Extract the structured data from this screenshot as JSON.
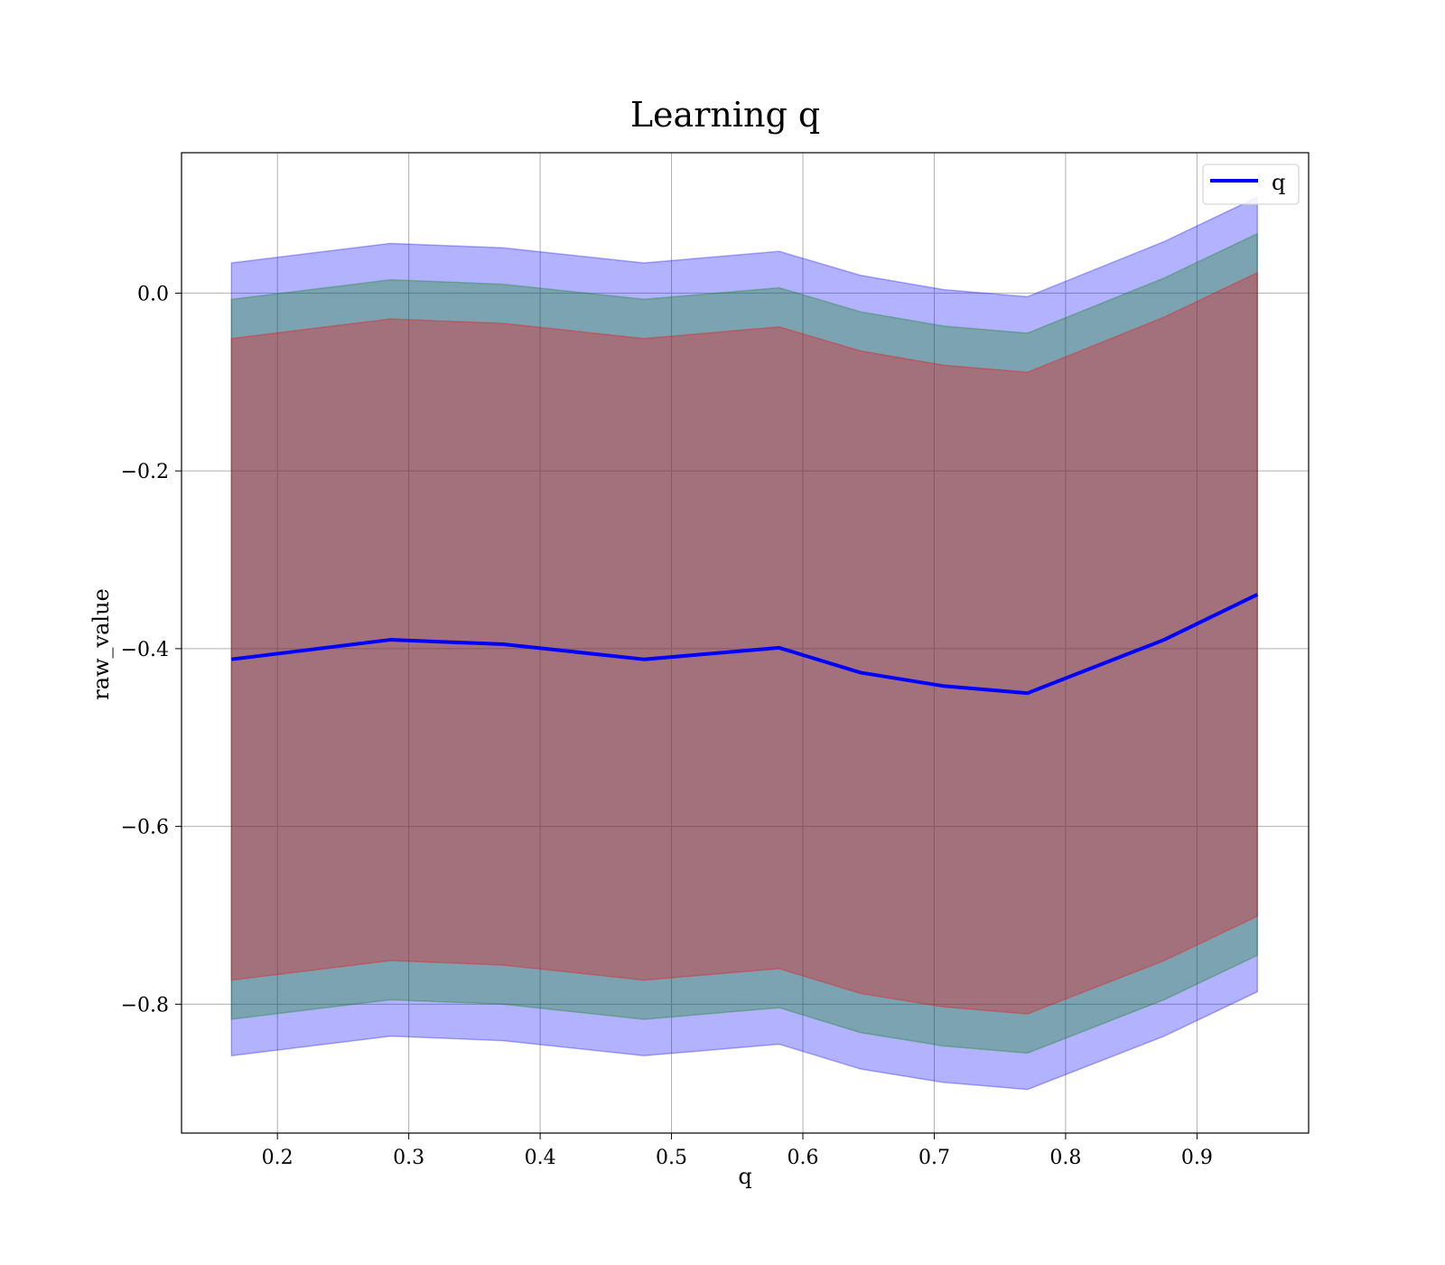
{
  "chart_data": {
    "type": "line",
    "title": "Learning q",
    "xlabel": "q",
    "ylabel": "raw_value",
    "xlim": [
      0.127,
      0.985
    ],
    "ylim": [
      -0.945,
      0.158
    ],
    "xticks": [
      0.2,
      0.3,
      0.4,
      0.5,
      0.6,
      0.7,
      0.8,
      0.9
    ],
    "xtick_labels": [
      "0.2",
      "0.3",
      "0.4",
      "0.5",
      "0.6",
      "0.7",
      "0.8",
      "0.9"
    ],
    "yticks": [
      0.0,
      -0.2,
      -0.4,
      -0.6,
      -0.8
    ],
    "ytick_labels": [
      "0.0",
      "−0.2",
      "−0.4",
      "−0.6",
      "−0.8"
    ],
    "grid": true,
    "legend_position": "top-right",
    "series": [
      {
        "name": "q",
        "color": "#0000ff",
        "x": [
          0.165,
          0.286,
          0.372,
          0.479,
          0.582,
          0.644,
          0.707,
          0.771,
          0.875,
          0.946
        ],
        "y": [
          -0.412,
          -0.39,
          -0.395,
          -0.412,
          -0.399,
          -0.427,
          -0.442,
          -0.45,
          -0.39,
          -0.339
        ]
      }
    ],
    "bands": [
      {
        "color": "#0000ff",
        "opacity": 0.3,
        "upper": [
          0.034,
          0.056,
          0.051,
          0.034,
          0.047,
          0.02,
          0.004,
          -0.004,
          0.058,
          0.108
        ],
        "lower": [
          -0.858,
          -0.836,
          -0.841,
          -0.858,
          -0.845,
          -0.873,
          -0.888,
          -0.896,
          -0.836,
          -0.786
        ]
      },
      {
        "color": "#008000",
        "opacity": 0.3,
        "upper": [
          -0.007,
          0.015,
          0.01,
          -0.007,
          0.006,
          -0.021,
          -0.037,
          -0.045,
          0.017,
          0.067
        ],
        "lower": [
          -0.817,
          -0.795,
          -0.8,
          -0.817,
          -0.804,
          -0.832,
          -0.847,
          -0.855,
          -0.795,
          -0.745
        ]
      },
      {
        "color": "#ff0000",
        "opacity": 0.3,
        "upper": [
          -0.051,
          -0.029,
          -0.034,
          -0.051,
          -0.038,
          -0.065,
          -0.081,
          -0.089,
          -0.027,
          0.023
        ],
        "lower": [
          -0.773,
          -0.751,
          -0.756,
          -0.773,
          -0.76,
          -0.788,
          -0.803,
          -0.811,
          -0.751,
          -0.701
        ]
      }
    ]
  }
}
